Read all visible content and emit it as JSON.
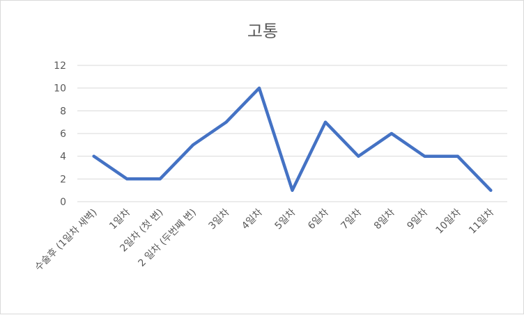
{
  "chart_data": {
    "type": "line",
    "title": "고통",
    "xlabel": "",
    "ylabel": "",
    "categories": [
      "수술후 (1일차 새벽)",
      "1일차",
      "2일차 (첫 변)",
      "2 일차 (두번째 변)",
      "3일차",
      "4일차",
      "5일차",
      "6일차",
      "7일차",
      "8일차",
      "9일차",
      "10일차",
      "11일차"
    ],
    "series": [
      {
        "values": [
          4,
          2,
          2,
          5,
          7,
          10,
          1,
          7,
          4,
          6,
          4,
          4,
          1
        ]
      }
    ],
    "ylim": [
      0,
      12
    ],
    "yticks": [
      "0",
      "2",
      "4",
      "6",
      "8",
      "10",
      "12"
    ],
    "grid": true,
    "legend": "none",
    "colors": {
      "line": "#4472c4",
      "grid": "#d9d9d9",
      "text": "#595959"
    }
  }
}
